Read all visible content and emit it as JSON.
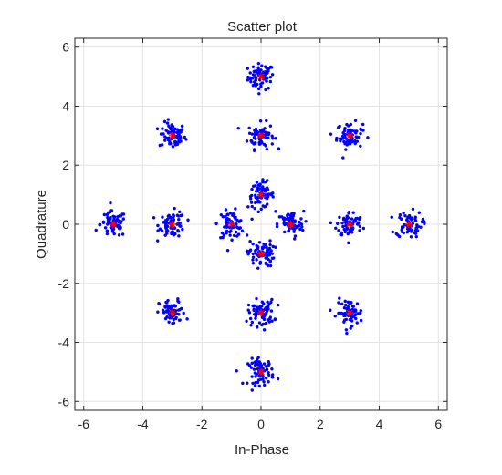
{
  "chart_data": {
    "type": "scatter",
    "title": "Scatter plot",
    "xlabel": "In-Phase",
    "ylabel": "Quadrature",
    "xlim": [
      -6.3,
      6.3
    ],
    "ylim": [
      -6.3,
      6.3
    ],
    "xticks": [
      -6,
      -4,
      -2,
      0,
      2,
      4,
      6
    ],
    "yticks": [
      -6,
      -4,
      -2,
      0,
      2,
      4,
      6
    ],
    "xtick_labels": [
      "-6",
      "-4",
      "-2",
      "0",
      "2",
      "4",
      "6"
    ],
    "ytick_labels": [
      "-6",
      "-4",
      "-2",
      "0",
      "2",
      "4",
      "6"
    ],
    "grid": true,
    "legend": "none",
    "points_per_cluster": 70,
    "noise_spread": 0.22,
    "series": [
      {
        "marker": "dot",
        "color": "#0000ff",
        "role": "received samples"
      },
      {
        "marker": "star",
        "color": "#ff0000",
        "role": "reference constellation",
        "points": [
          [
            0,
            5
          ],
          [
            -3,
            3
          ],
          [
            0,
            3
          ],
          [
            3,
            3
          ],
          [
            0,
            1
          ],
          [
            -5,
            0
          ],
          [
            -3,
            0
          ],
          [
            -1,
            0
          ],
          [
            1,
            0
          ],
          [
            3,
            0
          ],
          [
            5,
            0
          ],
          [
            0,
            -1
          ],
          [
            -3,
            -3
          ],
          [
            0,
            -3
          ],
          [
            3,
            -3
          ],
          [
            0,
            -5
          ]
        ]
      }
    ]
  },
  "colors": {
    "background": "#ffffff",
    "axes_background": "#ffffff",
    "grid": "#e3e3e3",
    "axis": "#262626",
    "samples": "#0000ff",
    "reference": "#ff0000"
  }
}
